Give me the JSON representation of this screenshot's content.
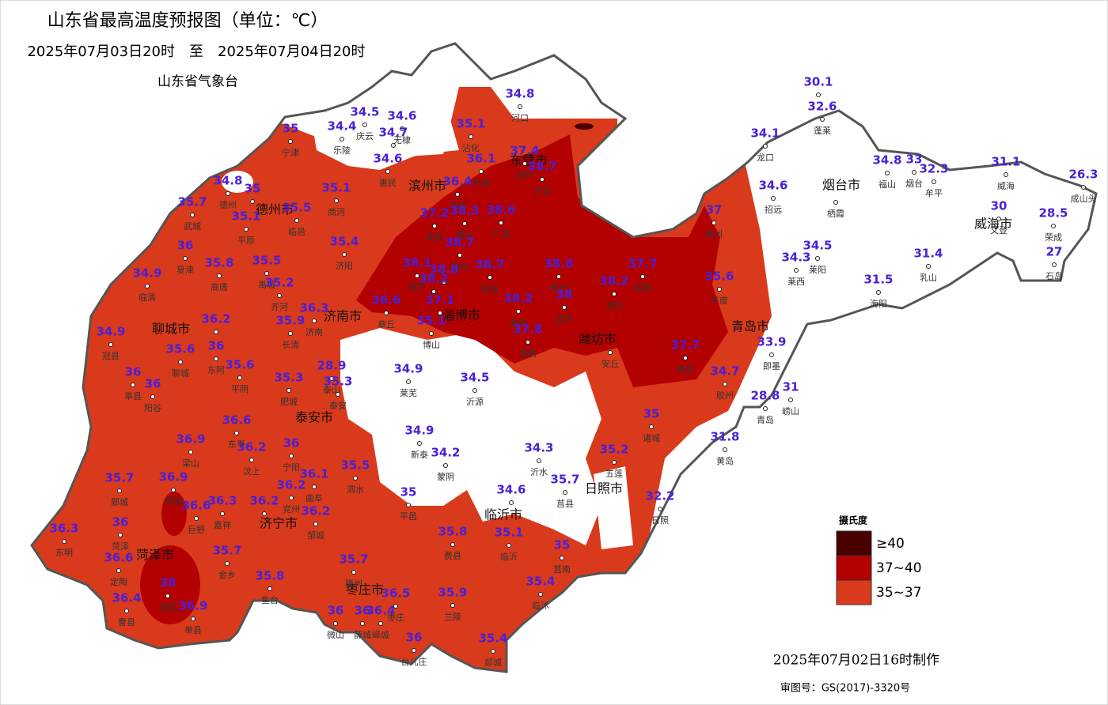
{
  "header": {
    "title": "山东省最高温度预报图（单位：℃）",
    "period": "2025年07月03日20时　至　2025年07月04日20时",
    "agency": "山东省气象台"
  },
  "legend": {
    "title": "摄氏度",
    "items": [
      {
        "label": "≥40",
        "color": "#4a0000"
      },
      {
        "label": "37~40",
        "color": "#b30000"
      },
      {
        "label": "35~37",
        "color": "#d93a1c"
      }
    ]
  },
  "footer": {
    "made": "2025年07月02日16时制作",
    "approval": "审图号：GS(2017)-3320号"
  },
  "cities": [
    "德州市",
    "滨州市",
    "东营市",
    "聊城市",
    "济南市",
    "淄博市",
    "潍坊市",
    "烟台市",
    "威海市",
    "青岛市",
    "泰安市",
    "济宁市",
    "菏泽市",
    "枣庄市",
    "临沂市",
    "日照市"
  ],
  "stations": [
    {
      "name": "河口",
      "temp": 34.8
    },
    {
      "name": "庆云",
      "temp": 34.5
    },
    {
      "name": "乐陵",
      "temp": 34.4
    },
    {
      "name": "无棣",
      "temp": 34.6
    },
    {
      "temp": 34.7
    },
    {
      "name": "惠民",
      "temp": 34.6
    },
    {
      "name": "沾化",
      "temp": 35.1
    },
    {
      "name": "利津",
      "temp": 36.1
    },
    {
      "name": "垦利",
      "temp": 37.4
    },
    {
      "name": "东营",
      "temp": 38.7
    },
    {
      "name": "滨城",
      "temp": 36.4
    },
    {
      "name": "宁津",
      "temp": 35
    },
    {
      "name": "德州",
      "temp": 34.8
    },
    {
      "temp": 35
    },
    {
      "name": "平原",
      "temp": 35.1
    },
    {
      "name": "临邑",
      "temp": 35.5
    },
    {
      "name": "商河",
      "temp": 35.1
    },
    {
      "name": "武城",
      "temp": 35.7
    },
    {
      "name": "夏津",
      "temp": 36
    },
    {
      "name": "高唐",
      "temp": 35.8
    },
    {
      "name": "济阳",
      "temp": 35.4
    },
    {
      "name": "禹城",
      "temp": 35.5
    },
    {
      "name": "齐河",
      "temp": 35.2
    },
    {
      "name": "临清",
      "temp": 34.9
    },
    {
      "temp": 36.2
    },
    {
      "name": "东阿",
      "temp": 36
    },
    {
      "name": "冠县",
      "temp": 34.9
    },
    {
      "name": "聊城",
      "temp": 35.6
    },
    {
      "name": "莘县",
      "temp": 36
    },
    {
      "name": "阳谷",
      "temp": 36
    },
    {
      "name": "平阴",
      "temp": 35.6
    },
    {
      "name": "长清",
      "temp": 35.9
    },
    {
      "name": "济南",
      "temp": 36.3
    },
    {
      "name": "章丘",
      "temp": 36.6
    },
    {
      "name": "邹平",
      "temp": 38.1
    },
    {
      "name": "高青",
      "temp": 37.2
    },
    {
      "name": "博兴",
      "temp": 38.3
    },
    {
      "name": "桓台",
      "temp": 38.7
    },
    {
      "temp": 38.8
    },
    {
      "temp": 38.2
    },
    {
      "temp": 37.1
    },
    {
      "name": "博山",
      "temp": 35.1
    },
    {
      "name": "广饶",
      "temp": 38.6
    },
    {
      "name": "临淄",
      "temp": 38.7
    },
    {
      "name": "寿光",
      "temp": 38.8
    },
    {
      "name": "昌乐",
      "temp": 38
    },
    {
      "name": "青州",
      "temp": 38.2
    },
    {
      "name": "临朐",
      "temp": 37.8
    },
    {
      "name": "潍坊",
      "temp": 38.2
    },
    {
      "name": "昌邑",
      "temp": 37.7
    },
    {
      "name": "安丘"
    },
    {
      "name": "莱州",
      "temp": 37
    },
    {
      "name": "平度",
      "temp": 35.6
    },
    {
      "name": "高密",
      "temp": 37.7
    },
    {
      "name": "即墨",
      "temp": 33.9
    },
    {
      "name": "胶州",
      "temp": 34.7
    },
    {
      "name": "青岛",
      "temp": 28.8
    },
    {
      "name": "崂山",
      "temp": 31
    },
    {
      "name": "黄岛",
      "temp": 31.8
    },
    {
      "name": "诸城",
      "temp": 35
    },
    {
      "name": "五莲",
      "temp": 35.2
    },
    {
      "name": "日照",
      "temp": 32.2
    },
    {
      "name": "莒县",
      "temp": 35.7
    },
    {
      "name": "莒南",
      "temp": 35
    },
    {
      "name": "临沭",
      "temp": 35.4
    },
    {
      "name": "郯城",
      "temp": 35.4
    },
    {
      "name": "临沂",
      "temp": 35.1
    },
    {
      "temp": 34.6
    },
    {
      "name": "沂水",
      "temp": 34.3
    },
    {
      "name": "沂源",
      "temp": 34.5
    },
    {
      "name": "莱芜",
      "temp": 34.9
    },
    {
      "name": "新泰",
      "temp": 34.9
    },
    {
      "name": "蒙阴",
      "temp": 34.2
    },
    {
      "name": "平邑",
      "temp": 35
    },
    {
      "name": "费县",
      "temp": 35.8
    },
    {
      "name": "兰陵",
      "temp": 35.9
    },
    {
      "name": "泗水",
      "temp": 35.5
    },
    {
      "name": "泰山",
      "temp": 28.9
    },
    {
      "name": "泰安",
      "temp": 35.3
    },
    {
      "name": "肥城",
      "temp": 35.3
    },
    {
      "name": "宁阳",
      "temp": 36
    },
    {
      "name": "曲阜",
      "temp": 36.1
    },
    {
      "name": "兖州",
      "temp": 36.2
    },
    {
      "name": "邹城",
      "temp": 36.2
    },
    {
      "temp": 36.2
    },
    {
      "name": "汶上",
      "temp": 36.2
    },
    {
      "name": "东平",
      "temp": 36.6
    },
    {
      "name": "梁山",
      "temp": 36.9
    },
    {
      "name": "郓城",
      "temp": 36.9
    },
    {
      "name": "巨野",
      "temp": 36.6
    },
    {
      "name": "嘉祥",
      "temp": 36.3
    },
    {
      "name": "鄄城",
      "temp": 35.7
    },
    {
      "name": "菏泽",
      "temp": 36
    },
    {
      "name": "东明",
      "temp": 36.3
    },
    {
      "name": "定陶",
      "temp": 36.6
    },
    {
      "name": "曹县",
      "temp": 36.4
    },
    {
      "name": "成武",
      "temp": 38
    },
    {
      "name": "单县",
      "temp": 36.9
    },
    {
      "name": "金乡",
      "temp": 35.7
    },
    {
      "name": "鱼台",
      "temp": 35.8
    },
    {
      "name": "微山",
      "temp": 36
    },
    {
      "name": "薛城",
      "temp": 36
    },
    {
      "name": "峄城",
      "temp": 36.4
    },
    {
      "name": "滕州",
      "temp": 35.7
    },
    {
      "name": "枣庄",
      "temp": 36.5
    },
    {
      "name": "台儿庄",
      "temp": 36
    },
    {
      "temp": 30.1
    },
    {
      "name": "蓬莱",
      "temp": 32.6
    },
    {
      "name": "龙口",
      "temp": 34.1
    },
    {
      "name": "招远",
      "temp": 34.6
    },
    {
      "name": "栖霞"
    },
    {
      "name": "福山",
      "temp": 34.8
    },
    {
      "name": "烟台",
      "temp": 33
    },
    {
      "name": "牟平",
      "temp": 32.3
    },
    {
      "name": "威海",
      "temp": 31.1
    },
    {
      "name": "文登",
      "temp": 30
    },
    {
      "name": "荣成",
      "temp": 28.5
    },
    {
      "name": "成山头",
      "temp": 26.3
    },
    {
      "name": "石岛",
      "temp": 27
    },
    {
      "name": "乳山",
      "temp": 31.4
    },
    {
      "name": "海阳",
      "temp": 31.5
    },
    {
      "name": "莱阳",
      "temp": 34.5
    },
    {
      "name": "莱西",
      "temp": 34.3
    }
  ]
}
